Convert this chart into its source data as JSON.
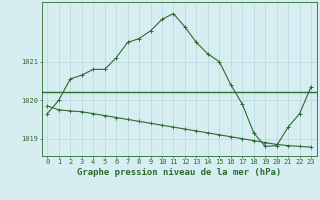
{
  "title": "Graphe pression niveau de la mer (hPa)",
  "bg_color": "#d6eef2",
  "grid_color": "#b8d8dc",
  "line_color": "#2d6a2d",
  "x_ticks": [
    0,
    1,
    2,
    3,
    4,
    5,
    6,
    7,
    8,
    9,
    10,
    11,
    12,
    13,
    14,
    15,
    16,
    17,
    18,
    19,
    20,
    21,
    22,
    23
  ],
  "y_ticks": [
    1019,
    1020,
    1021
  ],
  "ylim": [
    1018.55,
    1022.55
  ],
  "xlim": [
    -0.5,
    23.5
  ],
  "series1": [
    1019.65,
    1020.0,
    1020.55,
    1020.65,
    1020.8,
    1020.8,
    1021.1,
    1021.5,
    1021.6,
    1021.8,
    1022.1,
    1022.25,
    1021.9,
    1021.5,
    1021.2,
    1021.0,
    1020.4,
    1019.9,
    1019.15,
    1018.8,
    1018.82,
    1019.3,
    1019.65,
    1020.35
  ],
  "series2": [
    1019.85,
    1019.75,
    1019.72,
    1019.7,
    1019.65,
    1019.6,
    1019.55,
    1019.5,
    1019.45,
    1019.4,
    1019.35,
    1019.3,
    1019.25,
    1019.2,
    1019.15,
    1019.1,
    1019.05,
    1019.0,
    1018.95,
    1018.9,
    1018.85,
    1018.82,
    1018.8,
    1018.78
  ],
  "hline_value": 1020.2,
  "title_fontsize": 6.5,
  "tick_fontsize": 5.0
}
